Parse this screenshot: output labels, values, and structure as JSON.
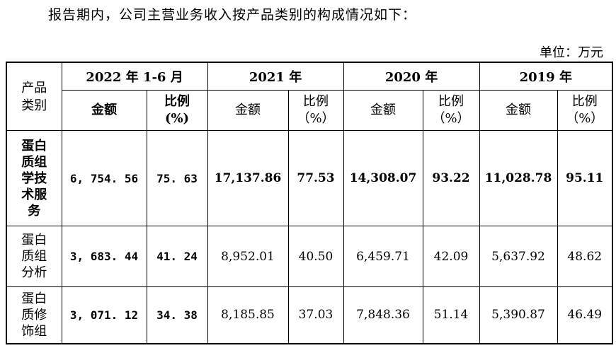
{
  "intro": "报告期内，公司主营业务收入按产品类别的构成情况如下：",
  "unit": "单位：万元",
  "header": {
    "category": [
      "产品",
      "类别"
    ],
    "years": [
      "2022 年 1-6 月",
      "2021 年",
      "2020 年",
      "2019 年"
    ],
    "amount": "金额",
    "ratio": [
      "比例",
      "(%)"
    ],
    "ratio_fw": [
      "比例",
      "（%）"
    ]
  },
  "rows": [
    {
      "category": [
        "蛋白",
        "质组",
        "学技",
        "术服",
        "务"
      ],
      "values": [
        "6, 754. 56",
        "75. 63",
        "17,137.86",
        "77.53",
        "14,308.07",
        "93.22",
        "11,028.78",
        "95.11"
      ]
    },
    {
      "category": [
        "蛋白",
        "质组",
        "分析"
      ],
      "values": [
        "3, 683. 44",
        "41. 24",
        "8,952.01",
        "40.50",
        "6,459.71",
        "42.09",
        "5,637.92",
        "48.62"
      ]
    },
    {
      "category": [
        "蛋白",
        "质修",
        "饰组"
      ],
      "values": [
        "3, 071. 12",
        "34. 38",
        "8,185.85",
        "37.03",
        "7,848.36",
        "51.14",
        "5,390.87",
        "46.49"
      ]
    }
  ]
}
